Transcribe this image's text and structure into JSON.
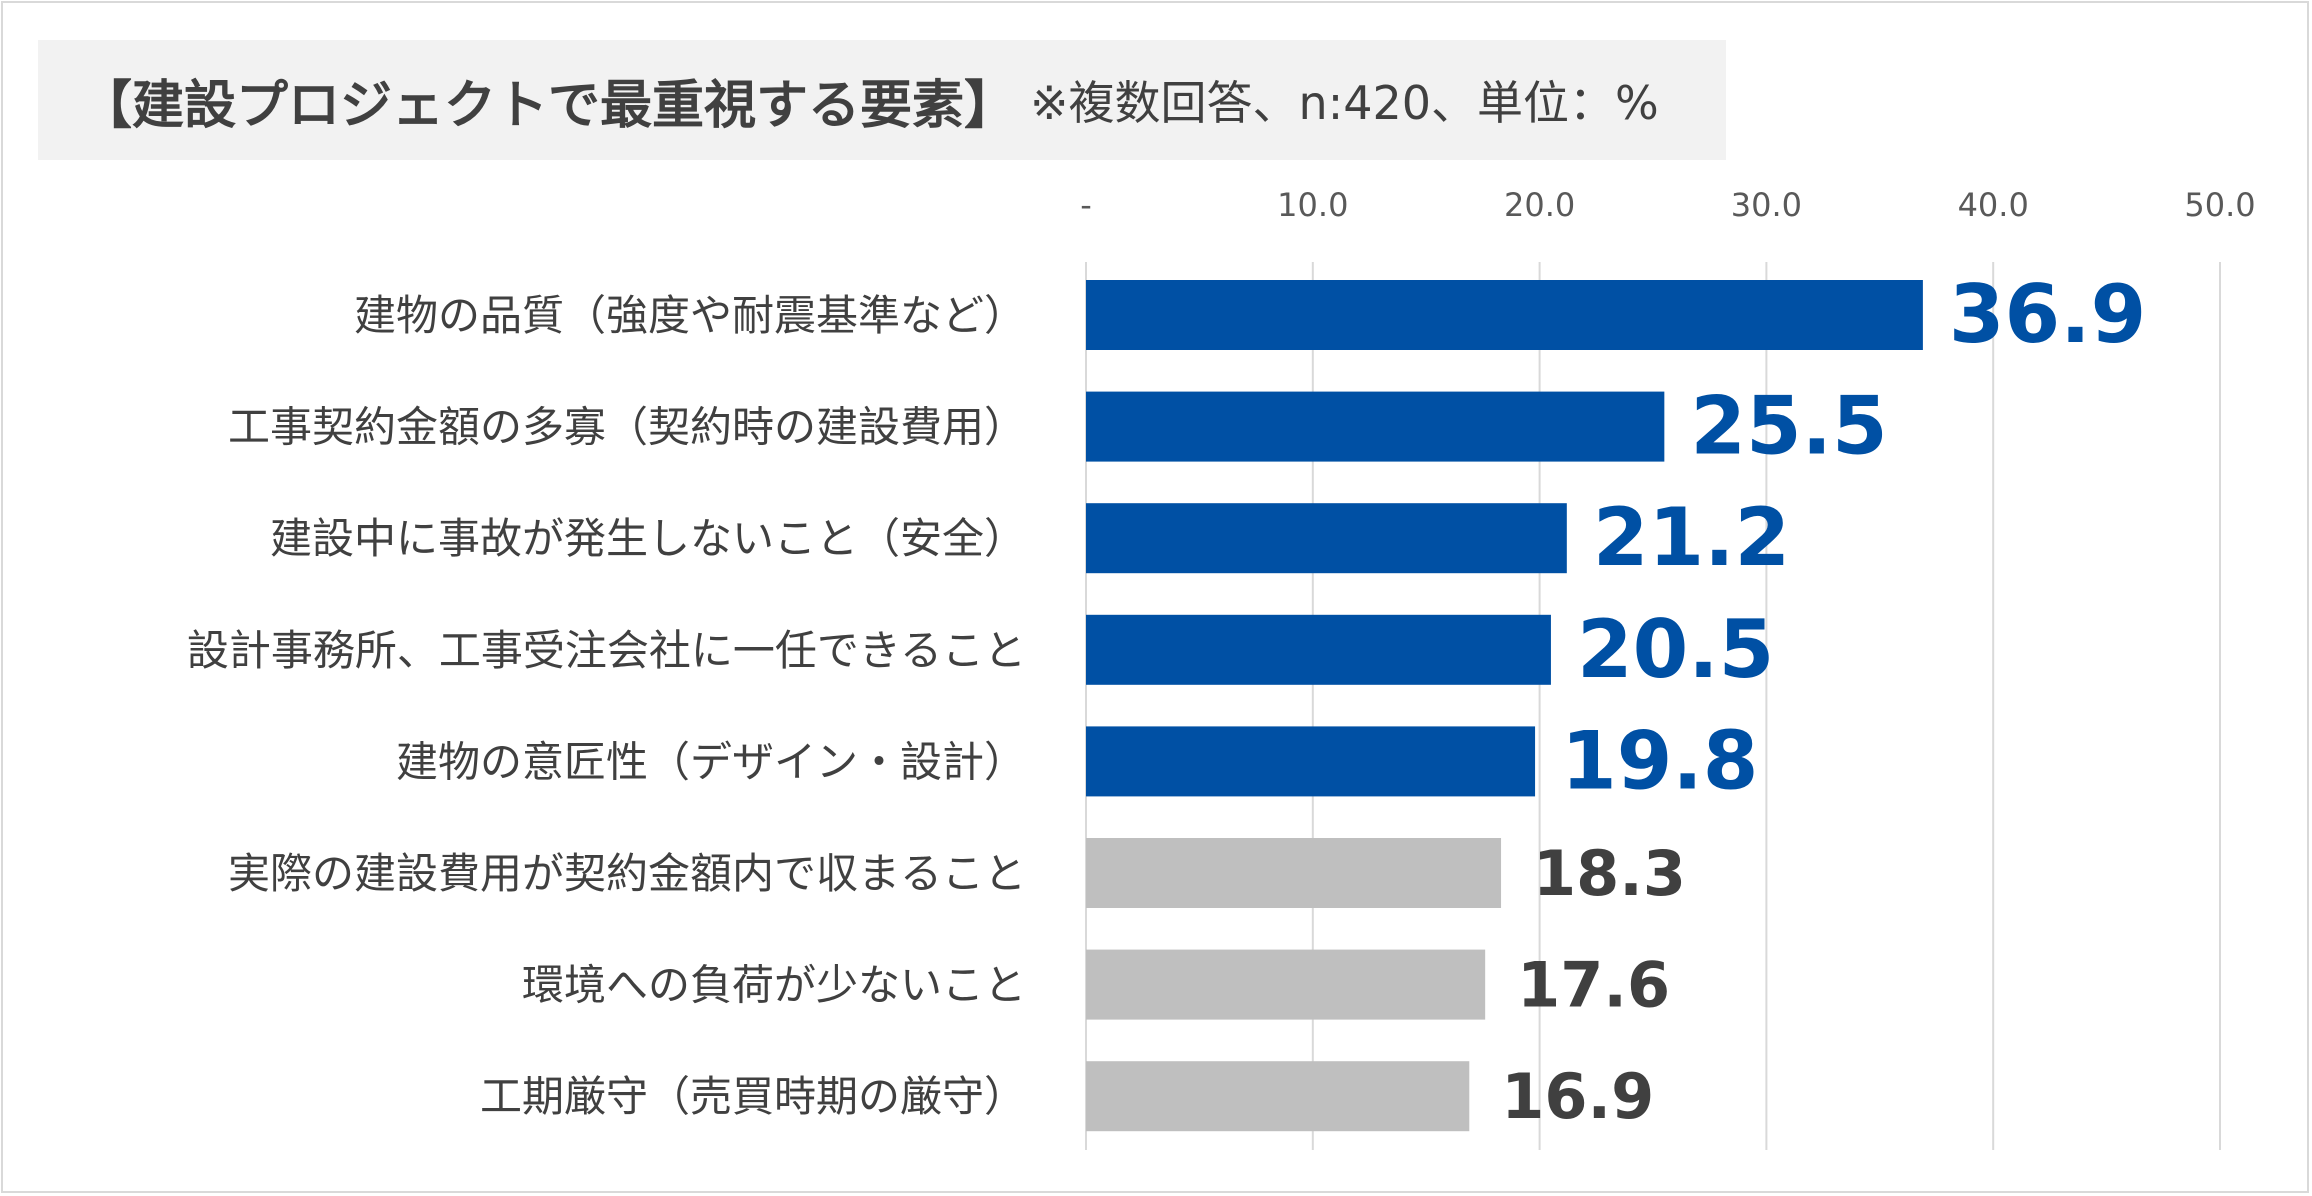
{
  "title": {
    "main": "【建設プロジェクトで最重視する要素】",
    "sub": "※複数回答、n:420、単位：%"
  },
  "chart_data": {
    "type": "bar",
    "orientation": "horizontal",
    "categories": [
      "建物の品質（強度や耐震基準など）",
      "工事契約金額の多寡（契約時の建設費用）",
      "建設中に事故が発生しないこと（安全）",
      "設計事務所、工事受注会社に一任できること",
      "建物の意匠性（デザイン・設計）",
      "実際の建設費用が契約金額内で収まること",
      "環境への負荷が少ないこと",
      "工期厳守（売買時期の厳守）"
    ],
    "values": [
      36.9,
      25.5,
      21.2,
      20.5,
      19.8,
      18.3,
      17.6,
      16.9
    ],
    "value_labels": [
      "36.9",
      "25.5",
      "21.2",
      "20.5",
      "19.8",
      "18.3",
      "17.6",
      "16.9"
    ],
    "xlim": [
      0,
      50
    ],
    "x_ticks": [
      0,
      10,
      20,
      30,
      40,
      50
    ],
    "x_tick_labels": [
      "-",
      "10.0",
      "20.0",
      "30.0",
      "40.0",
      "50.0"
    ],
    "axis_position": "top",
    "grid": true,
    "highlight_count": 5,
    "colors": {
      "highlight_bar": "#0050a4",
      "other_bar": "#bfbfbf",
      "highlight_label": "#0050a4",
      "other_label": "#404040",
      "grid": "#d9d9d9",
      "category_text": "#404040",
      "tick_text": "#595959"
    }
  }
}
